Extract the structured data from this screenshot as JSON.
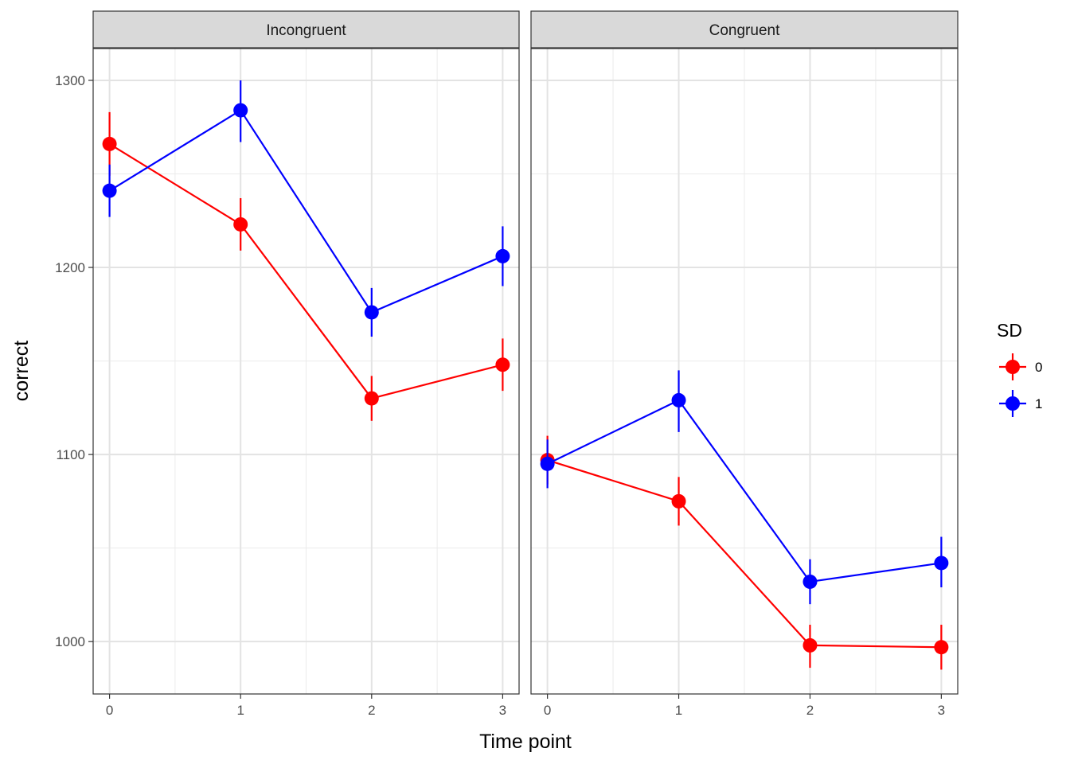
{
  "chart_data": {
    "type": "line",
    "xlabel": "Time point",
    "ylabel": "correct",
    "x": [
      0,
      1,
      2,
      3
    ],
    "xticks": [
      "0",
      "1",
      "2",
      "3"
    ],
    "yticks": [
      1000,
      1100,
      1200,
      1300
    ],
    "ylim": [
      972,
      1317
    ],
    "grid": true,
    "legend": {
      "title": "SD",
      "placement": "right",
      "entries": [
        {
          "label": "0",
          "color": "#ff0000"
        },
        {
          "label": "1",
          "color": "#0000ff"
        }
      ]
    },
    "panels": [
      {
        "strip": "Incongruent",
        "series": [
          {
            "key": "0",
            "color": "#ff0000",
            "values": [
              1266,
              1223,
              1130,
              1148
            ],
            "lower": [
              1249,
              1209,
              1118,
              1134
            ],
            "upper": [
              1283,
              1237,
              1142,
              1162
            ]
          },
          {
            "key": "1",
            "color": "#0000ff",
            "values": [
              1241,
              1284,
              1176,
              1206
            ],
            "lower": [
              1227,
              1267,
              1163,
              1190
            ],
            "upper": [
              1255,
              1300,
              1189,
              1222
            ]
          }
        ]
      },
      {
        "strip": "Congruent",
        "series": [
          {
            "key": "0",
            "color": "#ff0000",
            "values": [
              1097,
              1075,
              998,
              997
            ],
            "lower": [
              1084,
              1062,
              986,
              985
            ],
            "upper": [
              1110,
              1088,
              1009,
              1009
            ]
          },
          {
            "key": "1",
            "color": "#0000ff",
            "values": [
              1095,
              1129,
              1032,
              1042
            ],
            "lower": [
              1082,
              1112,
              1020,
              1029
            ],
            "upper": [
              1108,
              1145,
              1044,
              1056
            ]
          }
        ]
      }
    ]
  }
}
